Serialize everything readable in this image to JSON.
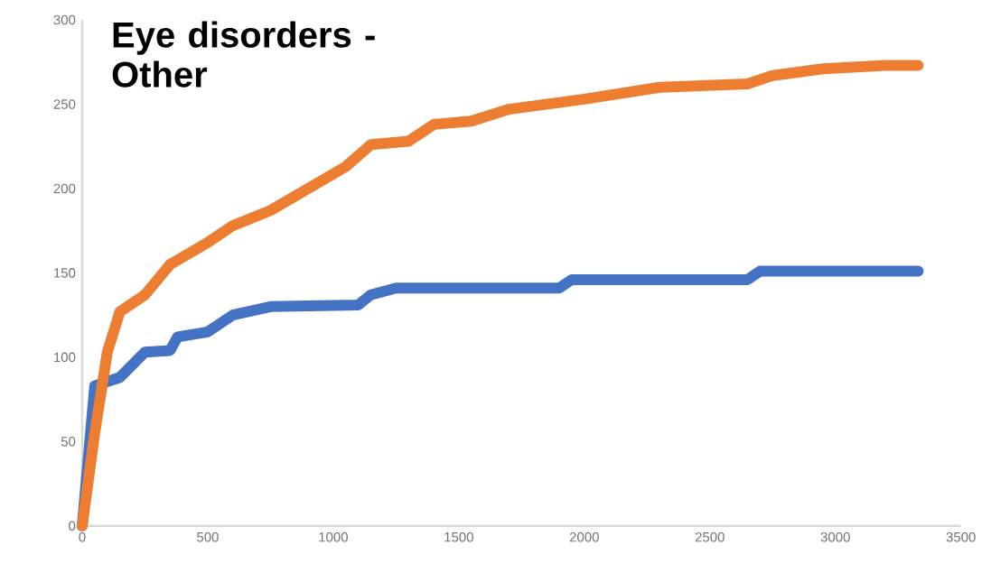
{
  "chart_data": {
    "type": "line",
    "title": "Eye disorders - Other",
    "series": [
      {
        "color": "#4472c4",
        "x": [
          0,
          30,
          50,
          150,
          250,
          350,
          380,
          500,
          600,
          750,
          1100,
          1150,
          1250,
          1900,
          1950,
          2650,
          2700,
          3330
        ],
        "values": [
          0,
          50,
          83,
          88,
          103,
          104,
          112,
          115,
          125,
          130,
          131,
          137,
          141,
          141,
          146,
          146,
          151,
          151
        ]
      },
      {
        "color": "#ed7d31",
        "x": [
          0,
          50,
          100,
          150,
          250,
          350,
          500,
          600,
          750,
          900,
          1050,
          1150,
          1300,
          1400,
          1550,
          1700,
          2000,
          2300,
          2650,
          2750,
          2950,
          3200,
          3330
        ],
        "values": [
          0,
          55,
          103,
          127,
          137,
          155,
          168,
          178,
          187,
          200,
          213,
          226,
          228,
          238,
          240,
          247,
          253,
          260,
          262,
          267,
          271,
          273,
          273
        ]
      }
    ],
    "xlim": [
      0,
      3500
    ],
    "xticks": [
      0,
      500,
      1000,
      1500,
      2000,
      2500,
      3000,
      3500
    ],
    "ylim": [
      0,
      300
    ],
    "yticks": [
      0,
      50,
      100,
      150,
      200,
      250,
      300
    ],
    "grid": false,
    "legend": false,
    "marker": "none",
    "line_style": "solid"
  }
}
